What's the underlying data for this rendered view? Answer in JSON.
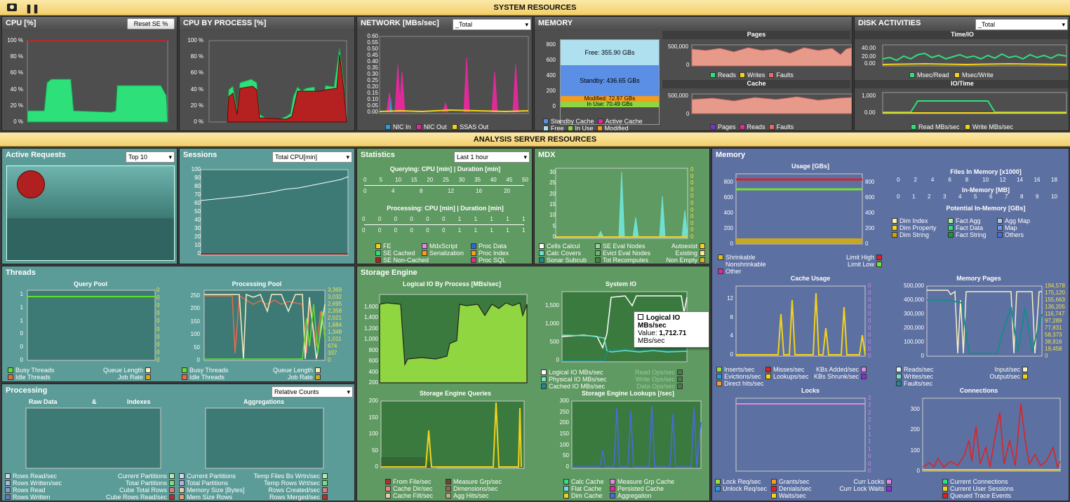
{
  "topbar": {
    "title": "SYSTEM RESOURCES",
    "camera_icon": "camera-icon",
    "pause_icon": "pause-icon"
  },
  "midbar": {
    "title": "ANALYSIS SERVER RESOURCES"
  },
  "cpu": {
    "title": "CPU [%]",
    "reset": "Reset SE %",
    "yticks": [
      "100 %",
      "80 %",
      "60 %",
      "40 %",
      "20 %",
      "0 %"
    ]
  },
  "cpu_proc": {
    "title": "CPU BY PROCESS [%]",
    "yticks": [
      "100 %",
      "80 %",
      "60 %",
      "40 %",
      "20 %",
      "0 %"
    ]
  },
  "network": {
    "title": "NETWORK [MBs/sec]",
    "select": "_Total",
    "yticks": [
      "0.60",
      "0.55",
      "0.50",
      "0.45",
      "0.40",
      "0.35",
      "0.30",
      "0.25",
      "0.20",
      "0.15",
      "0.10",
      "0.05",
      "0.00"
    ],
    "legend": [
      "NIC In",
      "NIC Out",
      "SSAS Out"
    ]
  },
  "memory": {
    "title": "MEMORY",
    "yticks": [
      "800",
      "600",
      "400",
      "200",
      "0"
    ],
    "free": "Free: 355.90 GBs",
    "standby": "Standby: 436.65 GBs",
    "modified": "Modified: 72.97 GBs",
    "inuse": "In Use: 70.49 GBs",
    "legend": [
      "Standby Cache",
      "Active Cache",
      "Free",
      "In Use",
      "Modified"
    ],
    "pages_title": "Pages",
    "pages_ytick": "500,000",
    "pages_zero": "0",
    "pages_legend": [
      "Reads",
      "Writes",
      "Faults"
    ],
    "cache_title": "Cache",
    "cache_ytick": "500,000",
    "cache_zero": "0",
    "cache_legend": [
      "Pages",
      "Reads",
      "Faults"
    ]
  },
  "disk": {
    "title": "DISK ACTIVITIES",
    "select": "_Total",
    "time_title": "Time/IO",
    "time_yticks": [
      "40.00",
      "20.00",
      "0.00"
    ],
    "time_legend": [
      "Msec/Read",
      "Msec/Write"
    ],
    "io_title": "IO/Time",
    "io_yticks": [
      "1,000",
      "0.00"
    ],
    "io_legend": [
      "Read MBs/sec",
      "Write MBs/sec"
    ]
  },
  "active": {
    "title": "Active Requests",
    "select": "Top 10"
  },
  "sessions": {
    "title": "Sessions",
    "select": "Total CPU[min]",
    "yticks": [
      "100",
      "90",
      "80",
      "70",
      "60",
      "50",
      "40",
      "30",
      "20",
      "10",
      "0"
    ]
  },
  "statistics": {
    "title": "Statistics",
    "select": "Last 1 hour",
    "q_title": "Querying: CPU [min]  |  Duration [min]",
    "q_top": [
      "0",
      "5",
      "10",
      "15",
      "20",
      "25",
      "30",
      "35",
      "40",
      "45",
      "50"
    ],
    "q_bot": [
      "0",
      "4",
      "8",
      "12",
      "16",
      "20"
    ],
    "p_title": "Processing: CPU [min]  |  Duration [min]",
    "p_top": [
      "0",
      "0",
      "0",
      "0",
      "0",
      "0",
      "1",
      "1",
      "1",
      "1",
      "1"
    ],
    "p_bot": [
      "0",
      "0",
      "0",
      "0",
      "0",
      "0",
      "1",
      "1",
      "1",
      "1",
      "1"
    ],
    "legend": [
      "FE",
      "SE Cached",
      "SE Non-Cached",
      "MdxScript",
      "Serialization",
      "Proc Data",
      "Proc Index",
      "Proc SQL"
    ]
  },
  "mdx": {
    "title": "MDX",
    "yticks": [
      "30",
      "25",
      "20",
      "15",
      "10",
      "5",
      "0"
    ],
    "rticks": [
      "0",
      "0",
      "0",
      "0",
      "0",
      "0",
      "0",
      "0",
      "0",
      "0",
      "0"
    ],
    "legend_l": [
      "Cells Calcul",
      "Calc Covers",
      "Sonar Subcub"
    ],
    "legend_m": [
      "SE Eval Nodes",
      "Evict Eval Nodes",
      "Tot Recomputes"
    ],
    "legend_r": [
      "Autoexist",
      "Existing",
      "Non Empty"
    ]
  },
  "threads": {
    "title": "Threads",
    "qp_title": "Query Pool",
    "qp_yticks": [
      "1",
      "1",
      "1",
      "0",
      "0",
      "0"
    ],
    "qp_rticks": [
      "0",
      "0",
      "0",
      "0",
      "0",
      "0",
      "0",
      "0",
      "0",
      "0"
    ],
    "pp_title": "Processing Pool",
    "pp_yticks": [
      "250",
      "200",
      "150",
      "100",
      "50",
      "0"
    ],
    "pp_rticks": [
      "3,369",
      "3,032",
      "2,695",
      "2,358",
      "2,021",
      "1,684",
      "1,348",
      "1,011",
      "674",
      "337",
      "0"
    ],
    "legend_l": [
      "Busy Threads",
      "Idle Threads"
    ],
    "legend_r": [
      "Queue Length",
      "Job Rate"
    ]
  },
  "processing": {
    "title": "Processing",
    "select": "Relative Counts",
    "raw": "Raw Data",
    "amp": "&",
    "idx": "Indexes",
    "agg": "Aggregations",
    "col1": [
      "Rows Read/sec",
      "Rows Written/sec",
      "Rows Read",
      "Rows Written"
    ],
    "col2": [
      "Current Partitions",
      "Total Partitions",
      "Cube Total Rows",
      "Cube Rows Read/sec"
    ],
    "col3": [
      "Current Partitions",
      "Total Partitions",
      "Memory Size [Bytes]",
      "Mem Size Rows"
    ],
    "col4": [
      "Temp Files Bs Wrtn/sec",
      "Temp Rows Wrt/sec",
      "Rows Created/sec",
      "Rows Merged/sec"
    ]
  },
  "storage": {
    "title": "Storage Engine",
    "lio_title": "Logical IO By Process [MBs/sec]",
    "lio_yticks": [
      "1,600",
      "1,400",
      "1,200",
      "1,000",
      "800",
      "600",
      "400",
      "200"
    ],
    "sio_title": "System IO",
    "sio_yticks": [
      "1,500",
      "1,000",
      "500",
      "0"
    ],
    "sio_legend": [
      "Logical IO MBs/sec",
      "Physical IO MBs/sec",
      "Cached IO MBs/sec"
    ],
    "sio_legend_r": [
      "Read Ops/sec",
      "Write Ops/sec",
      "Data Ops/sec"
    ],
    "tooltip_title": "Logical IO MBs/sec",
    "tooltip_value": "Value: ",
    "tooltip_num": "1,712.71",
    "tooltip_unit": " MBs/sec",
    "seq_title": "Storage Engine Queries",
    "seq_yticks": [
      "200",
      "150",
      "100",
      "50",
      "0"
    ],
    "sel_title": "Storage Engine Lookups [/sec]",
    "sel_yticks": [
      "300",
      "250",
      "200",
      "150",
      "100",
      "50",
      "0"
    ],
    "legend1": [
      "From File/sec",
      "Cache Dir/sec",
      "Cache Filt/sec"
    ],
    "legend2": [
      "Measure Grp/sec",
      "Dimensions/sec",
      "Agg Hits/sec"
    ],
    "legend3": [
      "Calc Cache",
      "Flat Cache",
      "Dim Cache"
    ],
    "legend4": [
      "Measure Grp Cache",
      "Persisted Cache",
      "Aggregation"
    ]
  },
  "memory2": {
    "title": "Memory",
    "usage_title": "Usage [GBs]",
    "usage_yticks": [
      "800",
      "600",
      "400",
      "200",
      "0"
    ],
    "usage_rticks": [
      "800",
      "600",
      "400",
      "200",
      "0"
    ],
    "files_title": "Files In Memory [x1000]",
    "files_ticks": [
      "0",
      "2",
      "4",
      "6",
      "8",
      "10",
      "12",
      "14",
      "16",
      "18"
    ],
    "inmem_title": "In-Memory [MB]",
    "inmem_ticks": [
      "0",
      "1",
      "2",
      "3",
      "4",
      "5",
      "6",
      "7",
      "8",
      "9",
      "10"
    ],
    "pot_title": "Potential In-Memory [GBs]",
    "pot_legend1": [
      "Dim Index",
      "Dim Property",
      "Dim String"
    ],
    "pot_legend2": [
      "Fact Agg",
      "Fact Data",
      "Fact String"
    ],
    "pot_legend3": [
      "Agg Map",
      "Map",
      "Others"
    ],
    "usage_legend_l": [
      "Shrinkable",
      "Nonshrinkable",
      "Other"
    ],
    "usage_legend_r": [
      "Limit High",
      "Limit Low"
    ],
    "cache_title": "Cache Usage",
    "cache_yticks": [
      "12",
      "8",
      "4",
      "0"
    ],
    "cache_rticks": [
      "0",
      "0",
      "0",
      "0",
      "0",
      "0",
      "0",
      "0",
      "0",
      "0",
      "0"
    ],
    "cache_legend1": [
      "Inserts/sec",
      "Evictions/sec",
      "Direct hits/sec"
    ],
    "cache_legend2": [
      "Misses/sec",
      "Lookups/sec"
    ],
    "cache_legend3": [
      "KBs Added/sec",
      "KBs Shrunk/sec"
    ],
    "mp_title": "Memory Pages",
    "mp_yticks": [
      "500,000",
      "400,000",
      "300,000",
      "200,000",
      "100,000",
      "0"
    ],
    "mp_rticks": [
      "194,578",
      "175,120",
      "155,663",
      "136,205",
      "116,747",
      "97,289",
      "77,831",
      "58,373",
      "38,916",
      "19,458",
      "0"
    ],
    "mp_legend_l": [
      "Reads/sec",
      "Writes/sec",
      "Faults/sec"
    ],
    "mp_legend_r": [
      "Input/sec",
      "Output/sec"
    ],
    "locks_title": "Locks",
    "locks_rticks": [
      "2",
      "2",
      "2",
      "2",
      "1",
      "1",
      "1",
      "1",
      "0",
      "0",
      "0"
    ],
    "locks_legend1": [
      "Lock Req/sec",
      "Unlock Req/sec"
    ],
    "locks_legend2": [
      "Grants/sec",
      "Denials/sec",
      "Waits/sec"
    ],
    "locks_legend3": [
      "Curr Locks",
      "Curr Lock Waits"
    ],
    "conn_title": "Connections",
    "conn_yticks": [
      "300",
      "200",
      "100",
      "0"
    ],
    "conn_legend": [
      "Current Connections",
      "Current User Sessions",
      "Queued Trace Events"
    ]
  }
}
